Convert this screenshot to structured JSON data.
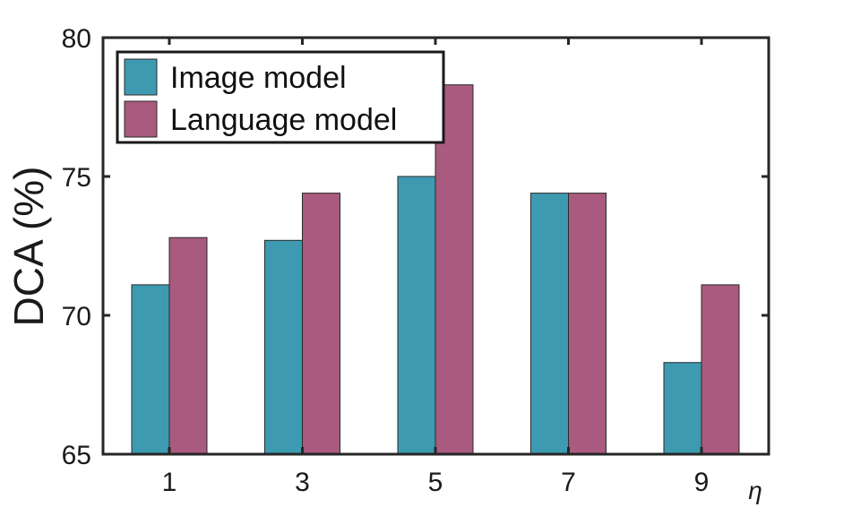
{
  "chart_data": {
    "type": "bar",
    "title": "",
    "xlabel": "η",
    "ylabel": "DCA (%)",
    "categories": [
      "1",
      "3",
      "5",
      "7",
      "9"
    ],
    "series": [
      {
        "name": "Image model",
        "values": [
          71.1,
          72.7,
          75.0,
          74.4,
          68.3
        ],
        "color": "#3d9ab0"
      },
      {
        "name": "Language model",
        "values": [
          72.8,
          74.4,
          78.3,
          74.4,
          71.1
        ],
        "color": "#a95a7f"
      }
    ],
    "ylim": [
      65,
      80
    ],
    "yticks": [
      "65",
      "70",
      "75",
      "80"
    ],
    "grid": false,
    "legend": "top-left"
  }
}
